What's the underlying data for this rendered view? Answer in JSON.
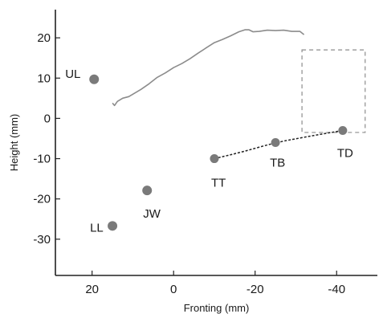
{
  "chart_data": {
    "type": "scatter",
    "title": "",
    "xlabel": "Fronting (mm)",
    "ylabel": "Height (mm)",
    "xlim": [
      29,
      -50
    ],
    "ylim": [
      -39,
      27
    ],
    "x_reversed": true,
    "xticks": [
      20,
      0,
      -20,
      -40
    ],
    "xtick_labels": [
      "20",
      "0",
      "-20",
      "-40"
    ],
    "yticks": [
      20,
      10,
      0,
      -10,
      -20,
      -30
    ],
    "ytick_labels": [
      "20",
      "10",
      "0",
      "-10",
      "-20",
      "-30"
    ],
    "grid": false,
    "points": [
      {
        "label": "UL",
        "x": 19.5,
        "y": 9.7
      },
      {
        "label": "LL",
        "x": 15.0,
        "y": -26.7
      },
      {
        "label": "JW",
        "x": 6.5,
        "y": -17.9
      },
      {
        "label": "TT",
        "x": -10.0,
        "y": -10.0
      },
      {
        "label": "TB",
        "x": -25.0,
        "y": -6.0
      },
      {
        "label": "TD",
        "x": -41.5,
        "y": -3.0
      }
    ],
    "tongue_curve": [
      [
        -10.0,
        -10.0
      ],
      [
        -17.0,
        -8.3
      ],
      [
        -25.0,
        -6.0
      ],
      [
        -33.0,
        -4.5
      ],
      [
        -41.5,
        -3.0
      ]
    ],
    "palate_trace": [
      [
        15.0,
        3.8
      ],
      [
        14.5,
        3.2
      ],
      [
        13.8,
        4.2
      ],
      [
        12.5,
        5.0
      ],
      [
        11.0,
        5.4
      ],
      [
        9.5,
        6.3
      ],
      [
        8.0,
        7.2
      ],
      [
        6.0,
        8.6
      ],
      [
        4.0,
        10.2
      ],
      [
        2.0,
        11.3
      ],
      [
        0.0,
        12.6
      ],
      [
        -2.0,
        13.6
      ],
      [
        -4.0,
        14.8
      ],
      [
        -6.0,
        16.2
      ],
      [
        -8.0,
        17.5
      ],
      [
        -10.0,
        18.8
      ],
      [
        -12.0,
        19.6
      ],
      [
        -14.0,
        20.5
      ],
      [
        -16.0,
        21.5
      ],
      [
        -17.5,
        22.0
      ],
      [
        -18.5,
        22.0
      ],
      [
        -19.5,
        21.5
      ],
      [
        -21.0,
        21.6
      ],
      [
        -23.0,
        21.9
      ],
      [
        -25.0,
        21.8
      ],
      [
        -27.0,
        21.9
      ],
      [
        -29.0,
        21.6
      ],
      [
        -31.0,
        21.6
      ],
      [
        -32.0,
        20.8
      ]
    ],
    "region_box": {
      "x_from": -31.5,
      "x_to": -47.0,
      "y_from": -3.5,
      "y_to": 17.0
    }
  }
}
